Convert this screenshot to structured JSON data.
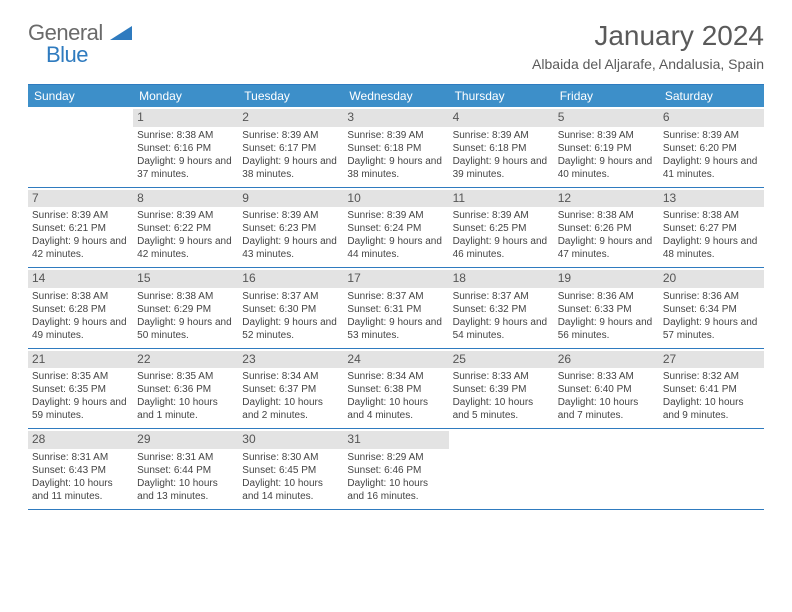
{
  "logo": {
    "text_general": "General",
    "text_blue": "Blue"
  },
  "title": "January 2024",
  "location": "Albaida del Aljarafe, Andalusia, Spain",
  "colors": {
    "header_bar": "#3d8fc9",
    "rule": "#2f7bbf",
    "daynum_bg": "#e3e3e3",
    "text": "#444444",
    "title_text": "#5a5a5a"
  },
  "weekdays": [
    "Sunday",
    "Monday",
    "Tuesday",
    "Wednesday",
    "Thursday",
    "Friday",
    "Saturday"
  ],
  "weeks": [
    [
      {
        "n": "",
        "sr": "",
        "ss": "",
        "dl": ""
      },
      {
        "n": "1",
        "sr": "Sunrise: 8:38 AM",
        "ss": "Sunset: 6:16 PM",
        "dl": "Daylight: 9 hours and 37 minutes."
      },
      {
        "n": "2",
        "sr": "Sunrise: 8:39 AM",
        "ss": "Sunset: 6:17 PM",
        "dl": "Daylight: 9 hours and 38 minutes."
      },
      {
        "n": "3",
        "sr": "Sunrise: 8:39 AM",
        "ss": "Sunset: 6:18 PM",
        "dl": "Daylight: 9 hours and 38 minutes."
      },
      {
        "n": "4",
        "sr": "Sunrise: 8:39 AM",
        "ss": "Sunset: 6:18 PM",
        "dl": "Daylight: 9 hours and 39 minutes."
      },
      {
        "n": "5",
        "sr": "Sunrise: 8:39 AM",
        "ss": "Sunset: 6:19 PM",
        "dl": "Daylight: 9 hours and 40 minutes."
      },
      {
        "n": "6",
        "sr": "Sunrise: 8:39 AM",
        "ss": "Sunset: 6:20 PM",
        "dl": "Daylight: 9 hours and 41 minutes."
      }
    ],
    [
      {
        "n": "7",
        "sr": "Sunrise: 8:39 AM",
        "ss": "Sunset: 6:21 PM",
        "dl": "Daylight: 9 hours and 42 minutes."
      },
      {
        "n": "8",
        "sr": "Sunrise: 8:39 AM",
        "ss": "Sunset: 6:22 PM",
        "dl": "Daylight: 9 hours and 42 minutes."
      },
      {
        "n": "9",
        "sr": "Sunrise: 8:39 AM",
        "ss": "Sunset: 6:23 PM",
        "dl": "Daylight: 9 hours and 43 minutes."
      },
      {
        "n": "10",
        "sr": "Sunrise: 8:39 AM",
        "ss": "Sunset: 6:24 PM",
        "dl": "Daylight: 9 hours and 44 minutes."
      },
      {
        "n": "11",
        "sr": "Sunrise: 8:39 AM",
        "ss": "Sunset: 6:25 PM",
        "dl": "Daylight: 9 hours and 46 minutes."
      },
      {
        "n": "12",
        "sr": "Sunrise: 8:38 AM",
        "ss": "Sunset: 6:26 PM",
        "dl": "Daylight: 9 hours and 47 minutes."
      },
      {
        "n": "13",
        "sr": "Sunrise: 8:38 AM",
        "ss": "Sunset: 6:27 PM",
        "dl": "Daylight: 9 hours and 48 minutes."
      }
    ],
    [
      {
        "n": "14",
        "sr": "Sunrise: 8:38 AM",
        "ss": "Sunset: 6:28 PM",
        "dl": "Daylight: 9 hours and 49 minutes."
      },
      {
        "n": "15",
        "sr": "Sunrise: 8:38 AM",
        "ss": "Sunset: 6:29 PM",
        "dl": "Daylight: 9 hours and 50 minutes."
      },
      {
        "n": "16",
        "sr": "Sunrise: 8:37 AM",
        "ss": "Sunset: 6:30 PM",
        "dl": "Daylight: 9 hours and 52 minutes."
      },
      {
        "n": "17",
        "sr": "Sunrise: 8:37 AM",
        "ss": "Sunset: 6:31 PM",
        "dl": "Daylight: 9 hours and 53 minutes."
      },
      {
        "n": "18",
        "sr": "Sunrise: 8:37 AM",
        "ss": "Sunset: 6:32 PM",
        "dl": "Daylight: 9 hours and 54 minutes."
      },
      {
        "n": "19",
        "sr": "Sunrise: 8:36 AM",
        "ss": "Sunset: 6:33 PM",
        "dl": "Daylight: 9 hours and 56 minutes."
      },
      {
        "n": "20",
        "sr": "Sunrise: 8:36 AM",
        "ss": "Sunset: 6:34 PM",
        "dl": "Daylight: 9 hours and 57 minutes."
      }
    ],
    [
      {
        "n": "21",
        "sr": "Sunrise: 8:35 AM",
        "ss": "Sunset: 6:35 PM",
        "dl": "Daylight: 9 hours and 59 minutes."
      },
      {
        "n": "22",
        "sr": "Sunrise: 8:35 AM",
        "ss": "Sunset: 6:36 PM",
        "dl": "Daylight: 10 hours and 1 minute."
      },
      {
        "n": "23",
        "sr": "Sunrise: 8:34 AM",
        "ss": "Sunset: 6:37 PM",
        "dl": "Daylight: 10 hours and 2 minutes."
      },
      {
        "n": "24",
        "sr": "Sunrise: 8:34 AM",
        "ss": "Sunset: 6:38 PM",
        "dl": "Daylight: 10 hours and 4 minutes."
      },
      {
        "n": "25",
        "sr": "Sunrise: 8:33 AM",
        "ss": "Sunset: 6:39 PM",
        "dl": "Daylight: 10 hours and 5 minutes."
      },
      {
        "n": "26",
        "sr": "Sunrise: 8:33 AM",
        "ss": "Sunset: 6:40 PM",
        "dl": "Daylight: 10 hours and 7 minutes."
      },
      {
        "n": "27",
        "sr": "Sunrise: 8:32 AM",
        "ss": "Sunset: 6:41 PM",
        "dl": "Daylight: 10 hours and 9 minutes."
      }
    ],
    [
      {
        "n": "28",
        "sr": "Sunrise: 8:31 AM",
        "ss": "Sunset: 6:43 PM",
        "dl": "Daylight: 10 hours and 11 minutes."
      },
      {
        "n": "29",
        "sr": "Sunrise: 8:31 AM",
        "ss": "Sunset: 6:44 PM",
        "dl": "Daylight: 10 hours and 13 minutes."
      },
      {
        "n": "30",
        "sr": "Sunrise: 8:30 AM",
        "ss": "Sunset: 6:45 PM",
        "dl": "Daylight: 10 hours and 14 minutes."
      },
      {
        "n": "31",
        "sr": "Sunrise: 8:29 AM",
        "ss": "Sunset: 6:46 PM",
        "dl": "Daylight: 10 hours and 16 minutes."
      },
      {
        "n": "",
        "sr": "",
        "ss": "",
        "dl": ""
      },
      {
        "n": "",
        "sr": "",
        "ss": "",
        "dl": ""
      },
      {
        "n": "",
        "sr": "",
        "ss": "",
        "dl": ""
      }
    ]
  ]
}
